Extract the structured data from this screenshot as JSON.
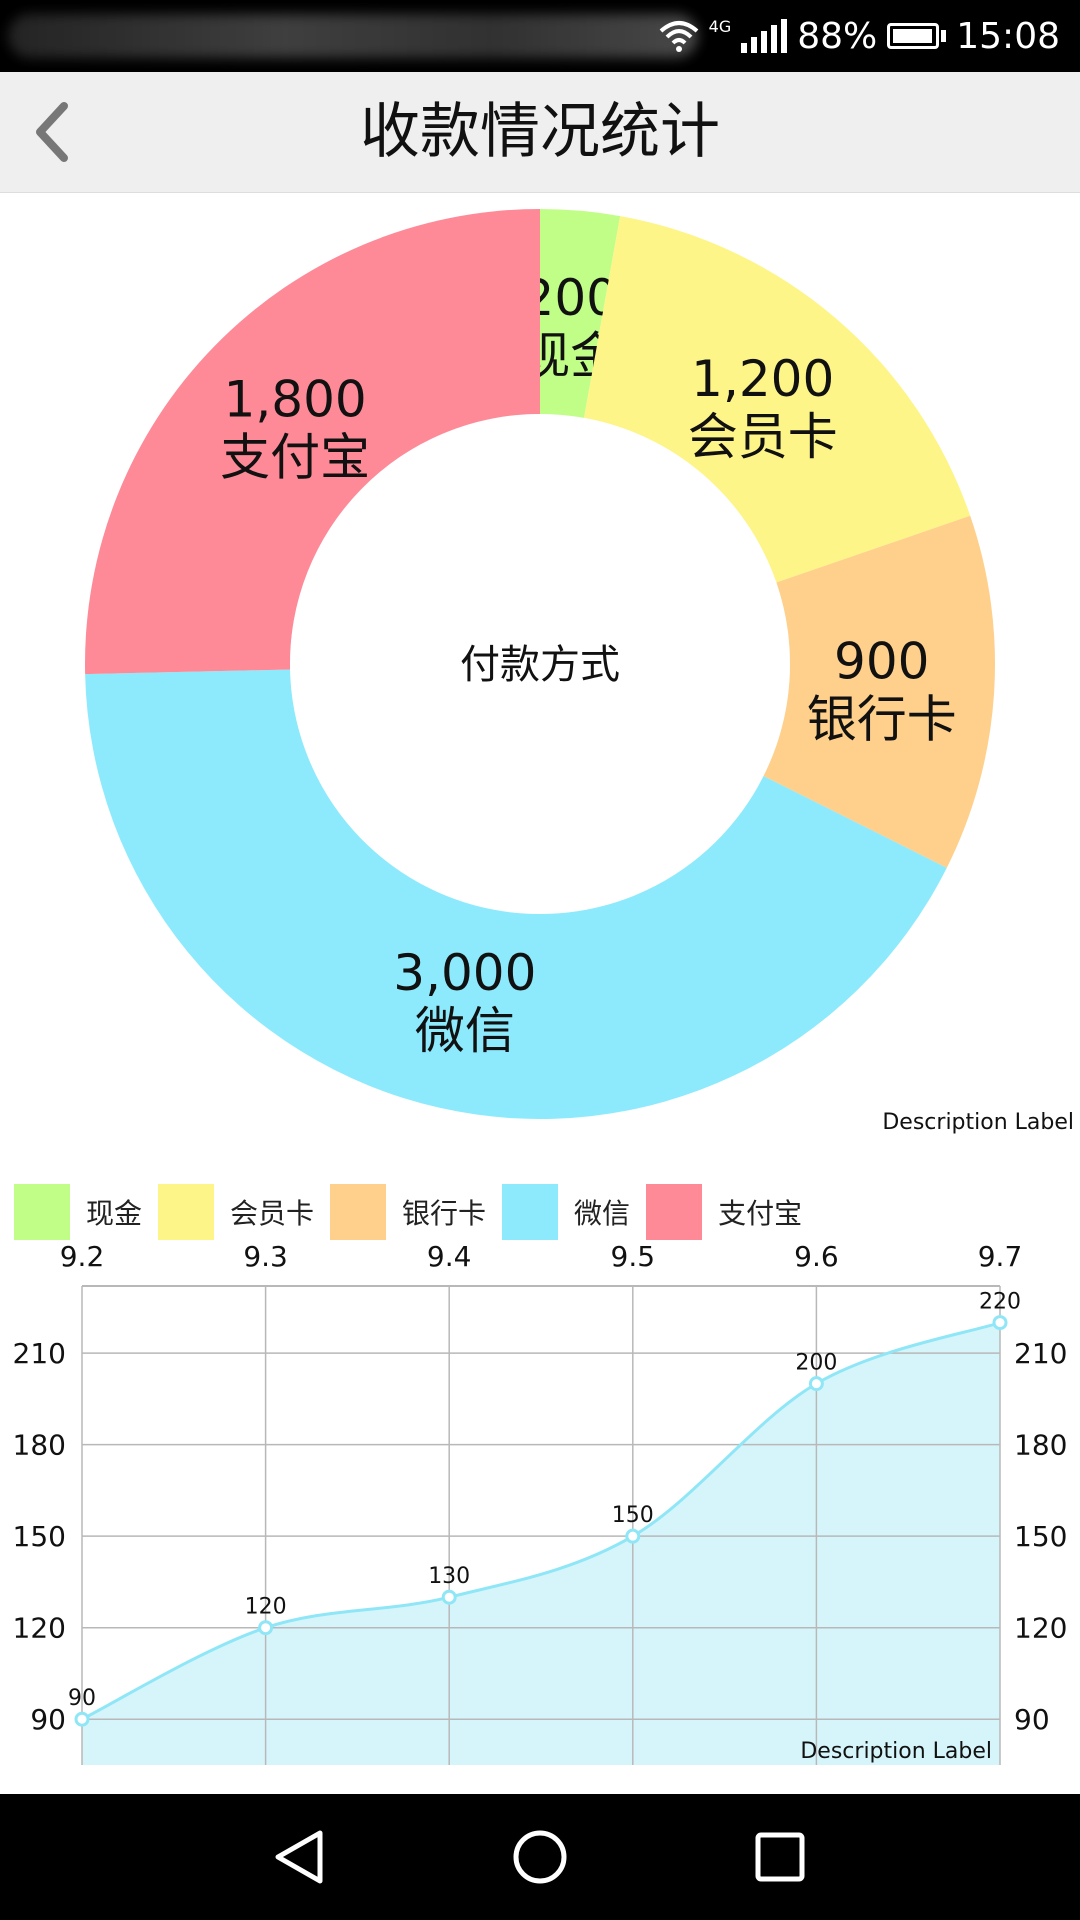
{
  "status_bar": {
    "network": "4G",
    "battery": "88%",
    "time": "15:08"
  },
  "header": {
    "title": "收款情况统计"
  },
  "colors": {
    "cash": "#c0fe88",
    "member_card": "#fef588",
    "bank_card": "#fed08c",
    "wechat": "#8deafc",
    "alipay": "#fe8a98",
    "line": "#8fe6f6",
    "area_fill": "#d6f5fb",
    "grid": "#b8b8b8"
  },
  "chart_data": [
    {
      "type": "pie",
      "center_text": "付款方式",
      "description": "Description Label",
      "slices": [
        {
          "label": "现金",
          "value": 200,
          "display": "200",
          "color_key": "cash"
        },
        {
          "label": "会员卡",
          "value": 1200,
          "display": "1,200",
          "color_key": "member_card"
        },
        {
          "label": "银行卡",
          "value": 900,
          "display": "900",
          "color_key": "bank_card"
        },
        {
          "label": "微信",
          "value": 3000,
          "display": "3,000",
          "color_key": "wechat"
        },
        {
          "label": "支付宝",
          "value": 1800,
          "display": "1,800",
          "color_key": "alipay"
        }
      ],
      "legend": [
        "现金",
        "会员卡",
        "银行卡",
        "微信",
        "支付宝"
      ]
    },
    {
      "type": "area",
      "categories": [
        "9.2",
        "9.3",
        "9.4",
        "9.5",
        "9.6",
        "9.7"
      ],
      "values": [
        90,
        120,
        130,
        150,
        200,
        220
      ],
      "value_labels": [
        "90",
        "120",
        "130",
        "150",
        "200",
        "220"
      ],
      "y_ticks": [
        90,
        120,
        150,
        180,
        210
      ],
      "y_tick_labels": [
        "90",
        "120",
        "150",
        "180",
        "210"
      ],
      "ylim": [
        75,
        232
      ],
      "grid": true,
      "description": "Description Label"
    }
  ]
}
